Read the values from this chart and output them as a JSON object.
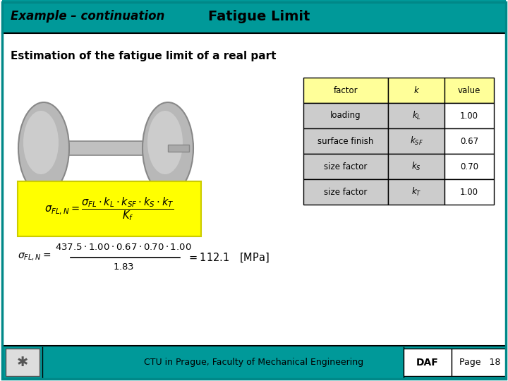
{
  "title_left": "Example – continuation",
  "title_center": "Fatigue Limit",
  "subtitle": "Estimation of the fatigue limit of a real part",
  "header_bg": "#009999",
  "header_text_color": "#000000",
  "body_bg": "#ffffff",
  "slide_border_color": "#008888",
  "table_headers": [
    "factor",
    "k",
    "value"
  ],
  "table_header_bg": "#ffff99",
  "table_row_bg_gray": "#cccccc",
  "table_row_bg_white": "#ffffff",
  "table_rows": [
    [
      "loading",
      "k_L",
      "1.00"
    ],
    [
      "surface finish",
      "k_SF",
      "0.67"
    ],
    [
      "size factor",
      "k_S",
      "0.70"
    ],
    [
      "size factor",
      "k_T",
      "1.00"
    ]
  ],
  "footer_text": "CTU in Prague, Faculty of Mechanical Engineering",
  "footer_right1": "DAF",
  "footer_right2": "Page   18",
  "footer_bg": "#009999",
  "yellow_box_bg": "#ffff00",
  "yellow_box_edge": "#cccc00"
}
